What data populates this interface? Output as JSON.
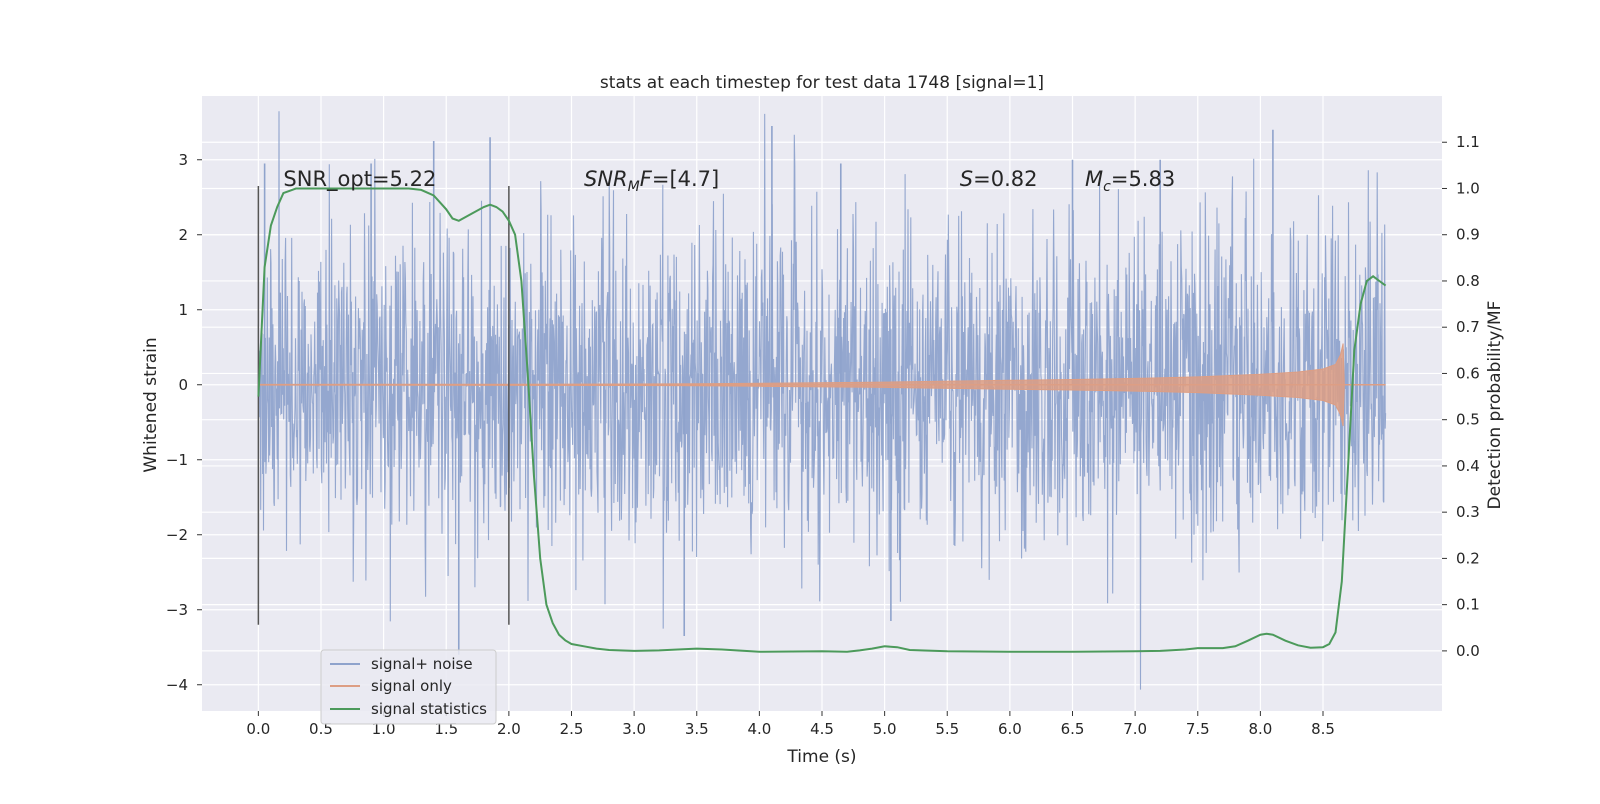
{
  "chart_data": {
    "type": "line",
    "title": "stats at each timestep for test data 1748 [signal=1]",
    "xlabel": "Time (s)",
    "ylabel": "Whitened strain",
    "ylabel_right": "Detection probability/MF",
    "xlim": [
      -0.45,
      9.45
    ],
    "ylim": [
      -4.35,
      3.85
    ],
    "ylim_right": [
      -0.13,
      1.2
    ],
    "x_ticks": [
      0.0,
      0.5,
      1.0,
      1.5,
      2.0,
      2.5,
      3.0,
      3.5,
      4.0,
      4.5,
      5.0,
      5.5,
      6.0,
      6.5,
      7.0,
      7.5,
      8.0,
      8.5
    ],
    "x_tick_labels": [
      "0.0",
      "0.5",
      "1.0",
      "1.5",
      "2.0",
      "2.5",
      "3.0",
      "3.5",
      "4.0",
      "4.5",
      "5.0",
      "5.5",
      "6.0",
      "6.5",
      "7.0",
      "7.5",
      "8.0",
      "8.5"
    ],
    "y_ticks": [
      3,
      2,
      1,
      0,
      -1,
      -2,
      -3,
      -4
    ],
    "y_tick_labels": [
      "3",
      "2",
      "1",
      "0",
      "−1",
      "−2",
      "−3",
      "−4"
    ],
    "y_ticks_right": [
      1.1,
      1.0,
      0.9,
      0.8,
      0.7,
      0.6,
      0.5,
      0.4,
      0.3,
      0.2,
      0.1,
      0.0
    ],
    "y_tick_labels_right": [
      "1.1",
      "1.0",
      "0.9",
      "0.8",
      "0.7",
      "0.6",
      "0.5",
      "0.4",
      "0.3",
      "0.2",
      "0.1",
      "0.0"
    ],
    "grid": true,
    "legend_position": "lower-left",
    "window_markers_x": [
      0.0,
      2.0
    ],
    "window_marker_range": [
      -3.2,
      2.65
    ],
    "annotations": [
      {
        "plain": "SNR_opt=5.22",
        "x": 0.2,
        "y": 2.65
      },
      {
        "var": "SNR",
        "sub": "M",
        "var2": "F",
        "rest": "=[4.7]",
        "x": 2.6,
        "y": 2.65
      },
      {
        "var": "S",
        "rest": "=0.82",
        "x": 5.6,
        "y": 2.65
      },
      {
        "var": "M",
        "sub": "c",
        "rest": "=5.83",
        "x": 6.6,
        "y": 2.65
      }
    ],
    "series": [
      {
        "name": "signal+ noise",
        "color": "#8fa3cc",
        "axis": "left",
        "kind": "noise-trace",
        "x_range": [
          0.0,
          9.0
        ],
        "typical_range": [
          -1.5,
          1.5
        ],
        "peaks_x": [
          0.05,
          0.9,
          1.4,
          1.6,
          1.85,
          3.4,
          4.1,
          4.65,
          5.05,
          6.5,
          7.2,
          8.1
        ],
        "peaks_y": [
          2.95,
          2.95,
          3.25,
          -3.6,
          3.3,
          -3.35,
          3.45,
          2.95,
          -3.15,
          3.0,
          3.0,
          3.4
        ]
      },
      {
        "name": "signal only",
        "color": "#dd9e84",
        "axis": "left",
        "kind": "chirp-envelope",
        "x": [
          0.0,
          1.0,
          2.0,
          3.0,
          3.5,
          4.0,
          5.0,
          6.0,
          6.5,
          7.0,
          7.5,
          8.0,
          8.3,
          8.5,
          8.6,
          8.64,
          8.66,
          8.67
        ],
        "envelope": [
          0.005,
          0.006,
          0.008,
          0.01,
          0.013,
          0.02,
          0.035,
          0.06,
          0.07,
          0.085,
          0.105,
          0.14,
          0.17,
          0.21,
          0.27,
          0.4,
          0.55,
          0.0
        ],
        "x_end": 9.0
      },
      {
        "name": "signal statistics",
        "color": "#4c9a5b",
        "axis": "right",
        "kind": "line",
        "x": [
          0.0,
          0.05,
          0.1,
          0.15,
          0.2,
          0.25,
          0.3,
          0.5,
          0.8,
          1.0,
          1.2,
          1.3,
          1.4,
          1.5,
          1.55,
          1.6,
          1.7,
          1.8,
          1.85,
          1.9,
          1.95,
          2.0,
          2.05,
          2.1,
          2.15,
          2.2,
          2.25,
          2.3,
          2.35,
          2.4,
          2.45,
          2.5,
          2.6,
          2.7,
          2.8,
          3.0,
          3.2,
          3.5,
          3.7,
          4.0,
          4.5,
          4.7,
          4.8,
          4.9,
          5.0,
          5.1,
          5.2,
          5.5,
          6.0,
          6.5,
          7.0,
          7.2,
          7.4,
          7.5,
          7.7,
          7.8,
          7.9,
          8.0,
          8.05,
          8.1,
          8.2,
          8.3,
          8.4,
          8.5,
          8.55,
          8.6,
          8.65,
          8.7,
          8.75,
          8.8,
          8.85,
          8.9,
          8.95,
          9.0
        ],
        "y": [
          0.55,
          0.83,
          0.92,
          0.96,
          0.99,
          0.995,
          1.0,
          1.0,
          1.0,
          1.0,
          1.0,
          0.997,
          0.985,
          0.955,
          0.935,
          0.93,
          0.945,
          0.96,
          0.965,
          0.96,
          0.95,
          0.93,
          0.9,
          0.8,
          0.6,
          0.38,
          0.2,
          0.1,
          0.06,
          0.035,
          0.023,
          0.015,
          0.01,
          0.005,
          0.002,
          0.0,
          0.001,
          0.005,
          0.003,
          -0.002,
          -0.001,
          -0.002,
          0.001,
          0.005,
          0.01,
          0.008,
          0.002,
          -0.001,
          -0.002,
          -0.002,
          -0.001,
          0.0,
          0.003,
          0.006,
          0.006,
          0.01,
          0.022,
          0.035,
          0.037,
          0.035,
          0.022,
          0.012,
          0.007,
          0.008,
          0.015,
          0.04,
          0.15,
          0.4,
          0.65,
          0.75,
          0.8,
          0.81,
          0.8,
          0.79
        ]
      }
    ]
  }
}
